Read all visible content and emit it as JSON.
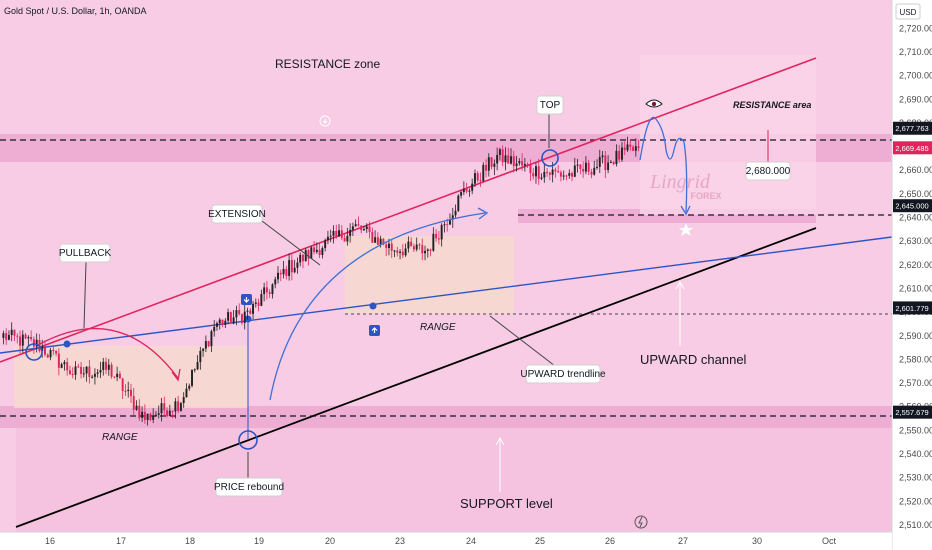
{
  "header": {
    "symbol_label": "Gold Spot / U.S. Dollar, 1h, OANDA",
    "currency": "USD"
  },
  "colors": {
    "background": "#f8cce4",
    "zone": "#eeaed4",
    "up": "#222222",
    "down": "#e0245e",
    "resistance_line": "#e0245e",
    "support_line": "#000000",
    "trend_line": "#2b55c4",
    "range_box": "#f6d8cf",
    "badge_dark": "#131722",
    "badge_red": "#e0245e",
    "arrow": "#3f6fd8"
  },
  "annotations": {
    "resistance_zone": "RESISTANCE zone",
    "resistance_area": "RESISTANCE area",
    "top": "TOP",
    "pullback": "PULLBACK",
    "extension": "EXTENSION",
    "range_left": "RANGE",
    "range_right": "RANGE",
    "upward_trendline": "UPWARD trendline",
    "upward_channel": "UPWARD channel",
    "price_rebound": "PRICE rebound",
    "support_level": "SUPPORT level",
    "target": "2,680.000",
    "watermark_main": "Lingrid",
    "watermark_sub": "FOREX"
  },
  "chart_data": {
    "type": "candlestick",
    "title": "Gold Spot / U.S. Dollar, 1h, OANDA",
    "ylabel": "USD",
    "ylim": [
      2507,
      2732
    ],
    "x_ticks": [
      "16",
      "17",
      "18",
      "19",
      "20",
      "23",
      "24",
      "25",
      "26",
      "27",
      "30",
      "Oct"
    ],
    "y_ticks": [
      "2,510.000",
      "2,520.000",
      "2,530.000",
      "2,540.000",
      "2,550.000",
      "2,560.000",
      "2,570.000",
      "2,580.000",
      "2,590.000",
      "2,600.000",
      "2,610.000",
      "2,620.000",
      "2,630.000",
      "2,640.000",
      "2,650.000",
      "2,660.000",
      "2,670.000",
      "2,680.000",
      "2,690.000",
      "2,700.000",
      "2,710.000",
      "2,720.000"
    ],
    "price_levels": [
      {
        "label": "2,677.763",
        "value": 2677.763,
        "style": "dark"
      },
      {
        "label": "2,669.485",
        "value": 2669.485,
        "style": "red"
      },
      {
        "label": "2,645.000",
        "value": 2645.0,
        "style": "dark"
      },
      {
        "label": "2,601.779",
        "value": 2601.779,
        "style": "dark"
      },
      {
        "label": "2,557.679",
        "value": 2557.679,
        "style": "dark"
      }
    ],
    "key_prices": [
      2590,
      2586,
      2574,
      2576,
      2555,
      2562,
      2595,
      2600,
      2618,
      2628,
      2636,
      2627,
      2626,
      2650,
      2666,
      2660,
      2658,
      2663,
      2669.485
    ]
  }
}
